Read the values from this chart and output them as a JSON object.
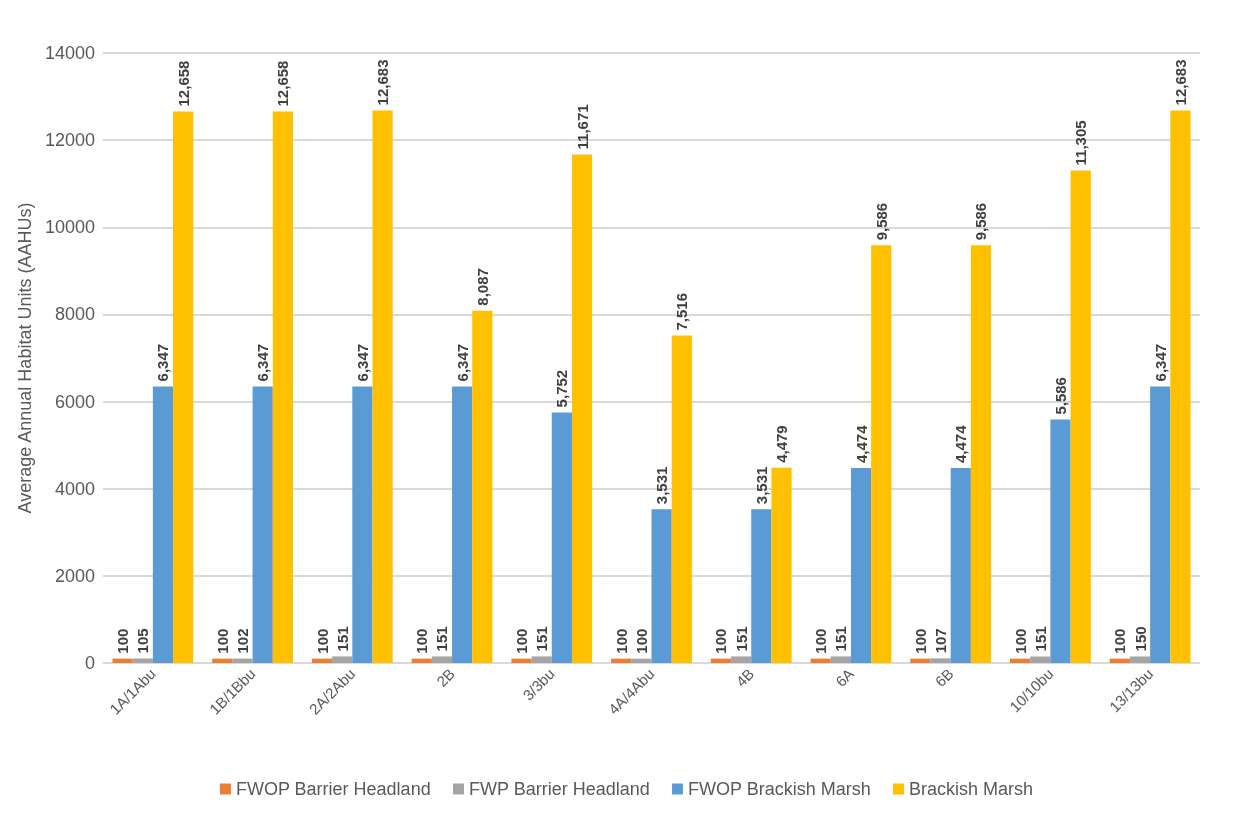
{
  "chart_data": {
    "type": "bar",
    "ylabel": "Average Annual Habitat Units (AAHUs)",
    "categories": [
      "1A/1Abu",
      "1B/1Bbu",
      "2A/2Abu",
      "2B",
      "3/3bu",
      "4A/4Abu",
      "4B",
      "6A",
      "6B",
      "10/10bu",
      "13/13bu"
    ],
    "series": [
      {
        "name": "FWOP Barrier Headland",
        "color": "#ed7d31",
        "values": [
          100,
          100,
          100,
          100,
          100,
          100,
          100,
          100,
          100,
          100,
          100
        ],
        "value_labels": [
          "100",
          "100",
          "100",
          "100",
          "100",
          "100",
          "100",
          "100",
          "100",
          "100",
          "100"
        ]
      },
      {
        "name": "FWP Barrier Headland",
        "color": "#a5a5a5",
        "values": [
          105,
          102,
          151,
          151,
          151,
          100,
          151,
          151,
          107,
          151,
          150
        ],
        "value_labels": [
          "105",
          "102",
          "151",
          "151",
          "151",
          "100",
          "151",
          "151",
          "107",
          "151",
          "150"
        ]
      },
      {
        "name": "FWOP Brackish Marsh",
        "color": "#5b9bd5",
        "values": [
          6347,
          6347,
          6347,
          6347,
          5752,
          3531,
          3531,
          4474,
          4474,
          5586,
          6347
        ],
        "value_labels": [
          "6,347",
          "6,347",
          "6,347",
          "6,347",
          "5,752",
          "3,531",
          "3,531",
          "4,474",
          "4,474",
          "5,586",
          "6,347"
        ]
      },
      {
        "name": "Brackish Marsh",
        "color": "#ffc000",
        "values": [
          12658,
          12658,
          12683,
          8087,
          11671,
          7516,
          4479,
          9586,
          9586,
          11305,
          12683
        ],
        "value_labels": [
          "12,658",
          "12,658",
          "12,683",
          "8,087",
          "11,671",
          "7,516",
          "4,479",
          "9,586",
          "9,586",
          "11,305",
          "12,683"
        ]
      }
    ],
    "ylim": [
      0,
      14000
    ],
    "yticks": [
      0,
      2000,
      4000,
      6000,
      8000,
      10000,
      12000,
      14000
    ],
    "grid": "y",
    "legend": "bottom"
  }
}
